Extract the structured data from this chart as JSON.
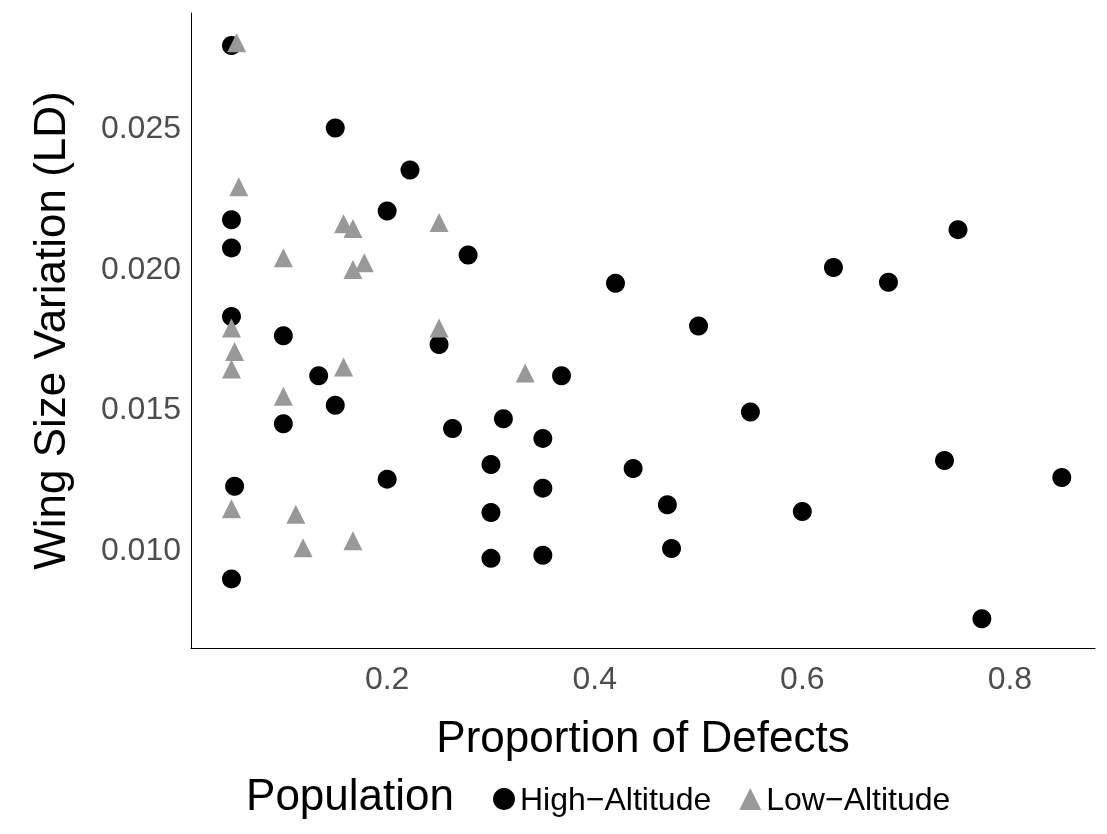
{
  "chart_data": {
    "type": "scatter",
    "xlabel": "Proportion of Defects",
    "ylabel": "Wing Size Variation (LD)",
    "legend_title": "Population",
    "legend": "bottom",
    "grid": false,
    "xlim": [
      0.011,
      0.882
    ],
    "xticks": [
      0.2,
      0.4,
      0.6,
      0.8
    ],
    "ylim": [
      0.00646,
      0.02906
    ],
    "yticks": [
      {
        "value": 0.01,
        "label": "0.010"
      },
      0.015,
      {
        "value": 0.02,
        "label": "0.020"
      },
      0.025
    ],
    "series": [
      {
        "name": "High−Altitude",
        "color": "#000000",
        "marker": "circle",
        "x": [
          0.05,
          0.15,
          0.222,
          0.2,
          0.05,
          0.05,
          0.278,
          0.05,
          0.1,
          0.25,
          0.134,
          0.15,
          0.1,
          0.263,
          0.312,
          0.35,
          0.368,
          0.3,
          0.437,
          0.35,
          0.2,
          0.053,
          0.3,
          0.47,
          0.474,
          0.3,
          0.35,
          0.05,
          0.42,
          0.5,
          0.55,
          0.6,
          0.63,
          0.683,
          0.75,
          0.737,
          0.773,
          0.85
        ],
        "values": [
          0.0279,
          0.02497,
          0.02347,
          0.02201,
          0.0217,
          0.0207,
          0.02045,
          0.01826,
          0.01757,
          0.01726,
          0.01615,
          0.0151,
          0.01444,
          0.01427,
          0.01462,
          0.01392,
          0.01615,
          0.01299,
          0.01285,
          0.01215,
          0.01247,
          0.01222,
          0.01128,
          0.01156,
          0.01,
          0.00965,
          0.00976,
          0.00892,
          0.01944,
          0.01792,
          0.01486,
          0.01132,
          0.02,
          0.01948,
          0.02135,
          0.01313,
          0.0075,
          0.01253
        ]
      },
      {
        "name": "Low−Altitude",
        "color": "#999999",
        "marker": "triangle",
        "x": [
          0.055,
          0.057,
          0.158,
          0.167,
          0.25,
          0.1,
          0.178,
          0.167,
          0.05,
          0.25,
          0.053,
          0.05,
          0.158,
          0.333,
          0.1,
          0.05,
          0.112,
          0.119,
          0.167
        ],
        "values": [
          0.028,
          0.02288,
          0.02156,
          0.02139,
          0.0216,
          0.02035,
          0.02017,
          0.01993,
          0.01785,
          0.01785,
          0.01701,
          0.01639,
          0.01646,
          0.01625,
          0.01542,
          0.01142,
          0.01122,
          0.01003,
          0.01028
        ]
      }
    ]
  }
}
